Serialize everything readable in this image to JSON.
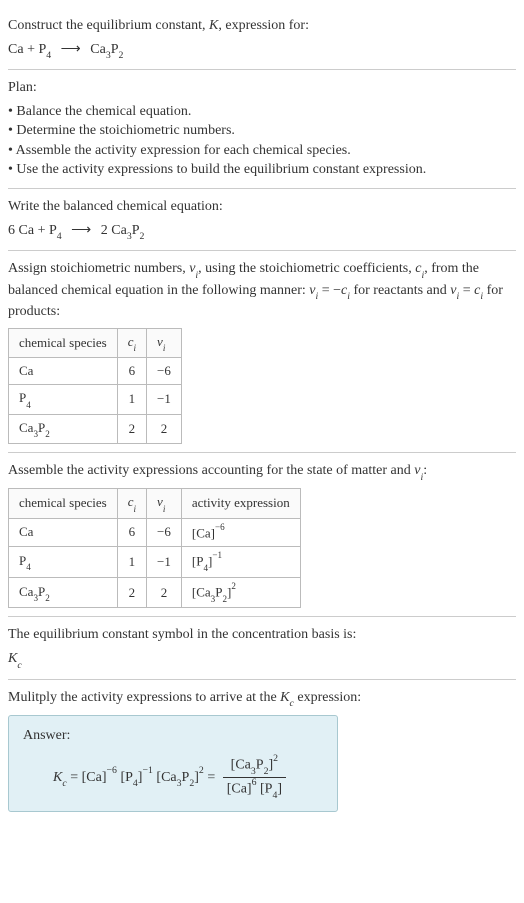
{
  "intro": {
    "line1": "Construct the equilibrium constant, ",
    "k": "K",
    "line1b": ", expression for:"
  },
  "eq1": {
    "ca": "Ca",
    "plus": " + ",
    "p": "P",
    "p_sub": "4",
    "arrow": "⟶",
    "ca3p2": "Ca",
    "ca3p2_sub1": "3",
    "ca3p2_p": "P",
    "ca3p2_sub2": "2"
  },
  "plan": {
    "title": "Plan:",
    "b1": "• Balance the chemical equation.",
    "b2": "• Determine the stoichiometric numbers.",
    "b3": "• Assemble the activity expression for each chemical species.",
    "b4": "• Use the activity expressions to build the equilibrium constant expression."
  },
  "balanced": {
    "title": "Write the balanced chemical equation:",
    "c1": "6 Ca",
    "plus": " + ",
    "p": "P",
    "p_sub": "4",
    "arrow": "⟶",
    "c2": "2 Ca",
    "c2_sub1": "3",
    "c2_p": "P",
    "c2_sub2": "2"
  },
  "stoich": {
    "text1": "Assign stoichiometric numbers, ",
    "nu": "ν",
    "nu_sub": "i",
    "text2": ", using the stoichiometric coefficients, ",
    "c": "c",
    "c_sub": "i",
    "text3": ", from the balanced chemical equation in the following manner: ",
    "eq1_l": "ν",
    "eq1_ls": "i",
    "eq1_m": " = −",
    "eq1_r": "c",
    "eq1_rs": "i",
    "text4": " for reactants and ",
    "eq2_l": "ν",
    "eq2_ls": "i",
    "eq2_m": " = ",
    "eq2_r": "c",
    "eq2_rs": "i",
    "text5": " for products:"
  },
  "table1": {
    "h1": "chemical species",
    "h2_c": "c",
    "h2_s": "i",
    "h3_c": "ν",
    "h3_s": "i",
    "r1c1": "Ca",
    "r1c2": "6",
    "r1c3": "−6",
    "r2c1": "P",
    "r2c1_s": "4",
    "r2c2": "1",
    "r2c3": "−1",
    "r3c1a": "Ca",
    "r3c1_s1": "3",
    "r3c1b": "P",
    "r3c1_s2": "2",
    "r3c2": "2",
    "r3c3": "2"
  },
  "activity": {
    "text1": "Assemble the activity expressions accounting for the state of matter and ",
    "nu": "ν",
    "nu_sub": "i",
    "text2": ":"
  },
  "table2": {
    "h1": "chemical species",
    "h2_c": "c",
    "h2_s": "i",
    "h3_c": "ν",
    "h3_s": "i",
    "h4": "activity expression",
    "r1c1": "Ca",
    "r1c2": "6",
    "r1c3": "−6",
    "r1c4_a": "[Ca]",
    "r1c4_e": "−6",
    "r2c1": "P",
    "r2c1_s": "4",
    "r2c2": "1",
    "r2c3": "−1",
    "r2c4_a": "[P",
    "r2c4_s": "4",
    "r2c4_b": "]",
    "r2c4_e": "−1",
    "r3c1a": "Ca",
    "r3c1_s1": "3",
    "r3c1b": "P",
    "r3c1_s2": "2",
    "r3c2": "2",
    "r3c3": "2",
    "r3c4_a": "[Ca",
    "r3c4_s1": "3",
    "r3c4_b": "P",
    "r3c4_s2": "2",
    "r3c4_c": "]",
    "r3c4_e": "2"
  },
  "eqsym": {
    "text": "The equilibrium constant symbol in the concentration basis is:",
    "k": "K",
    "k_sub": "c"
  },
  "multiply": {
    "text1": "Mulitply the activity expressions to arrive at the ",
    "k": "K",
    "k_sub": "c",
    "text2": " expression:"
  },
  "answer": {
    "label": "Answer:",
    "lhs_k": "K",
    "lhs_ks": "c",
    "eq": " = ",
    "t1": "[Ca]",
    "t1e": "−6",
    "sp": " ",
    "t2a": "[P",
    "t2s": "4",
    "t2b": "]",
    "t2e": "−1",
    "t3a": "[Ca",
    "t3s1": "3",
    "t3b": "P",
    "t3s2": "2",
    "t3c": "]",
    "t3e": "2",
    "eq2": " = ",
    "num_a": "[Ca",
    "num_s1": "3",
    "num_b": "P",
    "num_s2": "2",
    "num_c": "]",
    "num_e": "2",
    "den_a": "[Ca]",
    "den_e": "6",
    "den_sp": " ",
    "den_b": "[P",
    "den_s": "4",
    "den_c": "]"
  }
}
